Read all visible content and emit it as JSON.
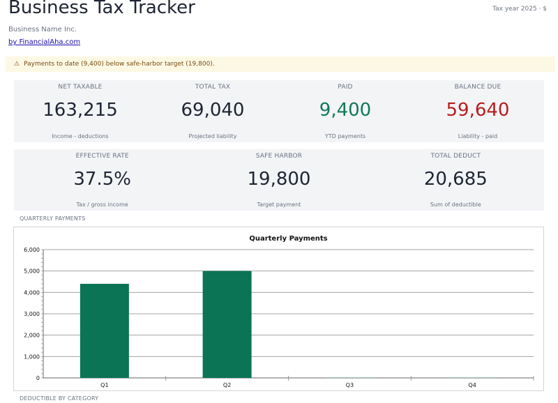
{
  "header": {
    "title": "Business Tax Tracker",
    "tax_year": "Tax year 2025 · $",
    "business_name": "Business Name Inc.",
    "by_link": "by FinancialAha.com"
  },
  "alert": {
    "icon": "warning-icon",
    "text": "Payments to date (9,400) below safe-harbor target (19,800)."
  },
  "metrics_row1": [
    {
      "label": "NET TAXABLE",
      "value": "163,215",
      "sub": "Income - deductions"
    },
    {
      "label": "TOTAL TAX",
      "value": "69,040",
      "sub": "Projected liability"
    },
    {
      "label": "PAID",
      "value": "9,400",
      "sub": "YTD payments"
    },
    {
      "label": "BALANCE DUE",
      "value": "59,640",
      "sub": "Liability - paid"
    }
  ],
  "metrics_row2": [
    {
      "label": "EFFECTIVE RATE",
      "value": "37.5%",
      "sub": "Tax / gross income"
    },
    {
      "label": "SAFE HARBOR",
      "value": "19,800",
      "sub": "Target payment"
    },
    {
      "label": "TOTAL DEDUCT",
      "value": "20,685",
      "sub": "Sum of deductible"
    }
  ],
  "colors": {
    "paid": "#0f7a55",
    "balance_due": "#b91c1c",
    "bar": "#0a7455"
  },
  "sections": {
    "quarterly": "QUARTERLY PAYMENTS",
    "deductible": "DEDUCTIBLE BY CATEGORY"
  },
  "chart_data": {
    "type": "bar",
    "title": "Quarterly Payments",
    "categories": [
      "Q1",
      "Q2",
      "Q3",
      "Q4"
    ],
    "values": [
      4400,
      5000,
      0,
      0
    ],
    "ylim": [
      0,
      6000
    ],
    "yticks": [
      "0",
      "1,000",
      "2,000",
      "3,000",
      "4,000",
      "5,000",
      "6,000"
    ],
    "grid": true,
    "xlabel": "",
    "ylabel": ""
  }
}
